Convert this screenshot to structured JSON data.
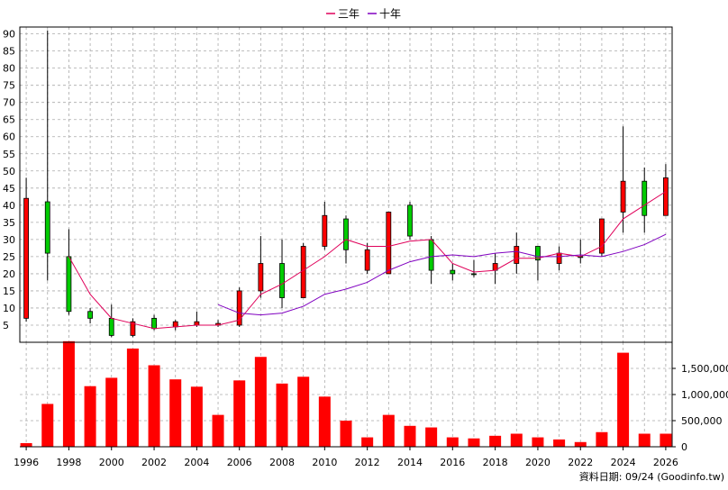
{
  "legend": {
    "items": [
      {
        "name": "三年",
        "color": "#e0005a"
      },
      {
        "name": "十年",
        "color": "#8000c0"
      }
    ]
  },
  "footer": "資料日期: 09/24  (Goodinfo.tw)",
  "colors": {
    "up": "#ff0000",
    "down": "#00cc00",
    "volume": "#ff0000",
    "grid": "#aaaaaa"
  },
  "chart_data": [
    {
      "type": "candlestick",
      "x_ticks": [
        "1996",
        "1998",
        "2000",
        "2002",
        "2004",
        "2006",
        "2008",
        "2010",
        "2012",
        "2014",
        "2016",
        "2018",
        "2020",
        "2022",
        "2024",
        "2026"
      ],
      "x_range": [
        1995.7,
        2026.3
      ],
      "y_ticks": [
        5,
        10,
        15,
        20,
        25,
        30,
        35,
        40,
        45,
        50,
        55,
        60,
        65,
        70,
        75,
        80,
        85,
        90
      ],
      "ylim": [
        0,
        92
      ],
      "grid": true,
      "candles": [
        {
          "year": 1996,
          "open": 42,
          "high": 48,
          "low": 6,
          "close": 7
        },
        {
          "year": 1997,
          "open": 26,
          "high": 91,
          "low": 18,
          "close": 41
        },
        {
          "year": 1998,
          "open": 9,
          "high": 33,
          "low": 8,
          "close": 25
        },
        {
          "year": 1999,
          "open": 7,
          "high": 10,
          "low": 5.5,
          "close": 9
        },
        {
          "year": 2000,
          "open": 2,
          "high": 11,
          "low": 1.5,
          "close": 7
        },
        {
          "year": 2001,
          "open": 6,
          "high": 7,
          "low": 1.5,
          "close": 2
        },
        {
          "year": 2002,
          "open": 4,
          "high": 8,
          "low": 3.5,
          "close": 7
        },
        {
          "year": 2003,
          "open": 6,
          "high": 6.5,
          "low": 3.5,
          "close": 4.5
        },
        {
          "year": 2004,
          "open": 6,
          "high": 9,
          "low": 4.5,
          "close": 5
        },
        {
          "year": 2005,
          "open": 5.5,
          "high": 6.5,
          "low": 4.5,
          "close": 5
        },
        {
          "year": 2006,
          "open": 15,
          "high": 16,
          "low": 4.5,
          "close": 5
        },
        {
          "year": 2007,
          "open": 23,
          "high": 31,
          "low": 13,
          "close": 15
        },
        {
          "year": 2008,
          "open": 13,
          "high": 30,
          "low": 10,
          "close": 23
        },
        {
          "year": 2009,
          "open": 28,
          "high": 29,
          "low": 13,
          "close": 13
        },
        {
          "year": 2010,
          "open": 37,
          "high": 41,
          "low": 27,
          "close": 28
        },
        {
          "year": 2011,
          "open": 27,
          "high": 37,
          "low": 23,
          "close": 36
        },
        {
          "year": 2012,
          "open": 27,
          "high": 29,
          "low": 20,
          "close": 21
        },
        {
          "year": 2013,
          "open": 38,
          "high": 38,
          "low": 20,
          "close": 20
        },
        {
          "year": 2014,
          "open": 31,
          "high": 41,
          "low": 30,
          "close": 40
        },
        {
          "year": 2015,
          "open": 21,
          "high": 31,
          "low": 17,
          "close": 30
        },
        {
          "year": 2016,
          "open": 20,
          "high": 23,
          "low": 18,
          "close": 21
        },
        {
          "year": 2017,
          "open": 20,
          "high": 24,
          "low": 19,
          "close": 20
        },
        {
          "year": 2018,
          "open": 23,
          "high": 26,
          "low": 17,
          "close": 21
        },
        {
          "year": 2019,
          "open": 28,
          "high": 32,
          "low": 20,
          "close": 23
        },
        {
          "year": 2020,
          "open": 24,
          "high": 28,
          "low": 18,
          "close": 28
        },
        {
          "year": 2021,
          "open": 26,
          "high": 28,
          "low": 21,
          "close": 23
        },
        {
          "year": 2022,
          "open": 25,
          "high": 30,
          "low": 23,
          "close": 25
        },
        {
          "year": 2023,
          "open": 36,
          "high": 36,
          "low": 25,
          "close": 26
        },
        {
          "year": 2024,
          "open": 47,
          "high": 63,
          "low": 32,
          "close": 38
        },
        {
          "year": 2025,
          "open": 37,
          "high": 51,
          "low": 32,
          "close": 47
        },
        {
          "year": 2026,
          "open": 48,
          "high": 52,
          "low": 37,
          "close": 37
        }
      ],
      "series": [
        {
          "name": "三年",
          "color": "#e0005a",
          "points": [
            [
              1998,
              25
            ],
            [
              1999,
              14
            ],
            [
              2000,
              7
            ],
            [
              2001,
              5.5
            ],
            [
              2002,
              4
            ],
            [
              2003,
              4.5
            ],
            [
              2004,
              5
            ],
            [
              2005,
              5
            ],
            [
              2006,
              6.5
            ],
            [
              2007,
              14
            ],
            [
              2008,
              17
            ],
            [
              2009,
              21
            ],
            [
              2010,
              25
            ],
            [
              2011,
              30
            ],
            [
              2012,
              28
            ],
            [
              2013,
              28
            ],
            [
              2014,
              29.5
            ],
            [
              2015,
              30
            ],
            [
              2016,
              23
            ],
            [
              2017,
              20.5
            ],
            [
              2018,
              21
            ],
            [
              2019,
              24.5
            ],
            [
              2020,
              24.5
            ],
            [
              2021,
              26
            ],
            [
              2022,
              25
            ],
            [
              2023,
              28
            ],
            [
              2024,
              36
            ],
            [
              2025,
              40
            ],
            [
              2026,
              44
            ]
          ]
        },
        {
          "name": "十年",
          "color": "#8000c0",
          "points": [
            [
              2005,
              11
            ],
            [
              2006,
              8.5
            ],
            [
              2007,
              8
            ],
            [
              2008,
              8.5
            ],
            [
              2009,
              10.5
            ],
            [
              2010,
              14
            ],
            [
              2011,
              15.5
            ],
            [
              2012,
              17.5
            ],
            [
              2013,
              21
            ],
            [
              2014,
              23.5
            ],
            [
              2015,
              25
            ],
            [
              2016,
              25.5
            ],
            [
              2017,
              25
            ],
            [
              2018,
              26
            ],
            [
              2019,
              26.5
            ],
            [
              2020,
              25
            ],
            [
              2021,
              25
            ],
            [
              2022,
              25.5
            ],
            [
              2023,
              25
            ],
            [
              2024,
              26.5
            ],
            [
              2025,
              28.5
            ],
            [
              2026,
              31.5
            ]
          ]
        }
      ]
    },
    {
      "type": "bar",
      "name": "volume",
      "y_ticks": [
        0,
        500000,
        1000000,
        1500000
      ],
      "y_tick_labels": [
        "0",
        "500,000",
        "1,000,000",
        "1,500,000"
      ],
      "ylim": [
        0,
        2000000
      ],
      "grid": true,
      "bars": [
        {
          "year": 1996,
          "value": 70000
        },
        {
          "year": 1997,
          "value": 820000
        },
        {
          "year": 1998,
          "value": 2020000
        },
        {
          "year": 1999,
          "value": 1160000
        },
        {
          "year": 2000,
          "value": 1320000
        },
        {
          "year": 2001,
          "value": 1880000
        },
        {
          "year": 2002,
          "value": 1560000
        },
        {
          "year": 2003,
          "value": 1290000
        },
        {
          "year": 2004,
          "value": 1150000
        },
        {
          "year": 2005,
          "value": 610000
        },
        {
          "year": 2006,
          "value": 1270000
        },
        {
          "year": 2007,
          "value": 1720000
        },
        {
          "year": 2008,
          "value": 1210000
        },
        {
          "year": 2009,
          "value": 1340000
        },
        {
          "year": 2010,
          "value": 960000
        },
        {
          "year": 2011,
          "value": 500000
        },
        {
          "year": 2012,
          "value": 180000
        },
        {
          "year": 2013,
          "value": 610000
        },
        {
          "year": 2014,
          "value": 400000
        },
        {
          "year": 2015,
          "value": 370000
        },
        {
          "year": 2016,
          "value": 180000
        },
        {
          "year": 2017,
          "value": 160000
        },
        {
          "year": 2018,
          "value": 210000
        },
        {
          "year": 2019,
          "value": 250000
        },
        {
          "year": 2020,
          "value": 180000
        },
        {
          "year": 2021,
          "value": 140000
        },
        {
          "year": 2022,
          "value": 90000
        },
        {
          "year": 2023,
          "value": 280000
        },
        {
          "year": 2024,
          "value": 1800000
        },
        {
          "year": 2025,
          "value": 250000
        },
        {
          "year": 2026,
          "value": 250000
        }
      ]
    }
  ]
}
